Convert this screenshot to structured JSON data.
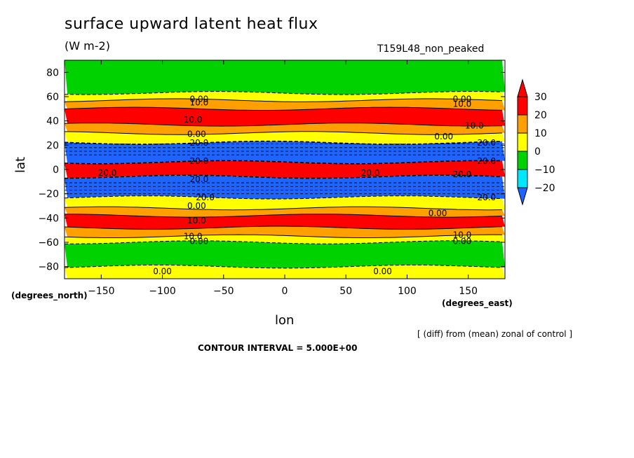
{
  "chart_data": {
    "type": "heatmap",
    "title": "surface upward latent heat flux",
    "units": "(W m-2)",
    "run_label": "T159L48_non_peaked",
    "xlabel": "lon",
    "ylabel": "lat",
    "x_unit_label": "(degrees_east)",
    "y_unit_label": "(degrees_north)",
    "xlim": [
      -180,
      180
    ],
    "ylim": [
      -90,
      90
    ],
    "x_ticks": [
      -150,
      -100,
      -50,
      0,
      50,
      100,
      150
    ],
    "y_ticks": [
      80,
      60,
      40,
      20,
      0,
      -20,
      -40,
      -60,
      -80
    ],
    "contour_interval_text": "CONTOUR INTERVAL = 5.000E+00",
    "note": "[ (diff) from (mean) zonal of control ]",
    "colorbar": {
      "levels": [
        -20,
        -10,
        0,
        10,
        20,
        30
      ],
      "colors": [
        "#1e8cff",
        "#00e6ff",
        "#00d200",
        "#ffff00",
        "#ffa000",
        "#ff0000"
      ],
      "under_color": "#1e64ff",
      "over_color": "#ff0000"
    },
    "bands": [
      {
        "lat_min": 63,
        "lat_max": 90,
        "value": -5
      },
      {
        "lat_min": 57,
        "lat_max": 63,
        "value": 5
      },
      {
        "lat_min": 50,
        "lat_max": 57,
        "value": 15
      },
      {
        "lat_min": 37,
        "lat_max": 50,
        "value": 25
      },
      {
        "lat_min": 30,
        "lat_max": 37,
        "value": 15
      },
      {
        "lat_min": 22,
        "lat_max": 30,
        "value": 5
      },
      {
        "lat_min": 6,
        "lat_max": 22,
        "value": -25
      },
      {
        "lat_min": -6,
        "lat_max": 6,
        "value": 35
      },
      {
        "lat_min": -23,
        "lat_max": -6,
        "value": -25
      },
      {
        "lat_min": -32,
        "lat_max": -23,
        "value": 5
      },
      {
        "lat_min": -38,
        "lat_max": -32,
        "value": 15
      },
      {
        "lat_min": -48,
        "lat_max": -38,
        "value": 25
      },
      {
        "lat_min": -55,
        "lat_max": -48,
        "value": 15
      },
      {
        "lat_min": -60,
        "lat_max": -55,
        "value": 5
      },
      {
        "lat_min": -80,
        "lat_max": -60,
        "value": -5
      },
      {
        "lat_min": -90,
        "lat_max": -80,
        "value": 5
      }
    ],
    "contour_labels": [
      {
        "lon": -70,
        "lat": 58,
        "text": "0.00"
      },
      {
        "lon": 145,
        "lat": 58,
        "text": "0.00"
      },
      {
        "lon": -70,
        "lat": 55,
        "text": "10.0"
      },
      {
        "lon": 145,
        "lat": 54,
        "text": "10.0"
      },
      {
        "lon": -75,
        "lat": 41,
        "text": "10.0"
      },
      {
        "lon": 155,
        "lat": 36,
        "text": "10.0"
      },
      {
        "lon": -72,
        "lat": 29,
        "text": "0.00"
      },
      {
        "lon": 130,
        "lat": 27,
        "text": "0.00"
      },
      {
        "lon": -70,
        "lat": 22,
        "text": "20.0"
      },
      {
        "lon": 165,
        "lat": 22,
        "text": "20.0"
      },
      {
        "lon": -70,
        "lat": 7,
        "text": "20.0"
      },
      {
        "lon": 165,
        "lat": 7,
        "text": "20.0"
      },
      {
        "lon": -145,
        "lat": -3,
        "text": "20.0"
      },
      {
        "lon": 70,
        "lat": -3,
        "text": "20.0"
      },
      {
        "lon": -70,
        "lat": -8,
        "text": "20.0"
      },
      {
        "lon": 145,
        "lat": -4,
        "text": "20.0"
      },
      {
        "lon": -65,
        "lat": -23,
        "text": "20.0"
      },
      {
        "lon": 165,
        "lat": -23,
        "text": "20.0"
      },
      {
        "lon": -72,
        "lat": -30,
        "text": "0.00"
      },
      {
        "lon": 125,
        "lat": -36,
        "text": "0.00"
      },
      {
        "lon": -72,
        "lat": -42,
        "text": "10.0"
      },
      {
        "lon": 145,
        "lat": -54,
        "text": "10.0"
      },
      {
        "lon": -75,
        "lat": -55,
        "text": "10.0"
      },
      {
        "lon": -70,
        "lat": -59,
        "text": "0.00"
      },
      {
        "lon": 145,
        "lat": -59,
        "text": "0.00"
      },
      {
        "lon": -100,
        "lat": -84,
        "text": "0.00"
      },
      {
        "lon": 80,
        "lat": -84,
        "text": "0.00"
      }
    ]
  }
}
